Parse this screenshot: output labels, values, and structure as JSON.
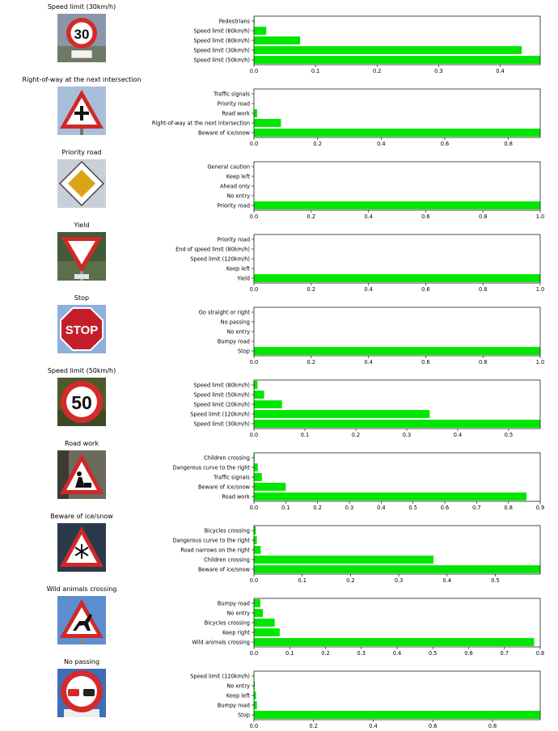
{
  "colors": {
    "bar": "#00e600",
    "axis": "#000000"
  },
  "rows": [
    {
      "title": "Speed limit (30km/h)",
      "sign": "speed-limit-30-sign",
      "chart_data": {
        "type": "bar",
        "orientation": "horizontal",
        "categories": [
          "Pedestrians",
          "Speed limit (60km/h)",
          "Speed limit (80km/h)",
          "Speed limit (30km/h)",
          "Speed limit (50km/h)"
        ],
        "values": [
          0.001,
          0.02,
          0.075,
          0.435,
          0.465
        ],
        "xlim": [
          0,
          0.465
        ],
        "xticks": [
          0.0,
          0.1,
          0.2,
          0.3,
          0.4
        ],
        "xtick_labels": [
          "0.0",
          "0.1",
          "0.2",
          "0.3",
          "0.4"
        ]
      }
    },
    {
      "title": "Right-of-way at the next intersection",
      "sign": "right-of-way-sign",
      "chart_data": {
        "type": "bar",
        "orientation": "horizontal",
        "categories": [
          "Traffic signals",
          "Priority road",
          "Road work",
          "Right-of-way at the next intersection",
          "Beware of ice/snow"
        ],
        "values": [
          0.0,
          0.0,
          0.01,
          0.085,
          0.9
        ],
        "xlim": [
          0,
          0.9
        ],
        "xticks": [
          0.0,
          0.2,
          0.4,
          0.6,
          0.8
        ],
        "xtick_labels": [
          "0.0",
          "0.2",
          "0.4",
          "0.6",
          "0.8"
        ]
      }
    },
    {
      "title": "Priority road",
      "sign": "priority-road-sign",
      "chart_data": {
        "type": "bar",
        "orientation": "horizontal",
        "categories": [
          "General caution",
          "Keep left",
          "Ahead only",
          "No entry",
          "Priority road"
        ],
        "values": [
          0.0,
          0.0,
          0.0,
          0.0,
          1.0
        ],
        "xlim": [
          0,
          1.0
        ],
        "xticks": [
          0.0,
          0.2,
          0.4,
          0.6,
          0.8,
          1.0
        ],
        "xtick_labels": [
          "0.0",
          "0.2",
          "0.4",
          "0.6",
          "0.8",
          "1.0"
        ]
      }
    },
    {
      "title": "Yield",
      "sign": "yield-sign",
      "chart_data": {
        "type": "bar",
        "orientation": "horizontal",
        "categories": [
          "Priority road",
          "End of speed limit (80km/h)",
          "Speed limit (120km/h)",
          "Keep left",
          "Yield"
        ],
        "values": [
          0.0,
          0.0,
          0.0,
          0.0,
          1.0
        ],
        "xlim": [
          0,
          1.0
        ],
        "xticks": [
          0.0,
          0.2,
          0.4,
          0.6,
          0.8,
          1.0
        ],
        "xtick_labels": [
          "0.0",
          "0.2",
          "0.4",
          "0.6",
          "0.8",
          "1.0"
        ]
      }
    },
    {
      "title": "Stop",
      "sign": "stop-sign",
      "chart_data": {
        "type": "bar",
        "orientation": "horizontal",
        "categories": [
          "Go straight or right",
          "No passing",
          "No entry",
          "Bumpy road",
          "Stop"
        ],
        "values": [
          0.0,
          0.0,
          0.0,
          0.0,
          1.0
        ],
        "xlim": [
          0,
          1.0
        ],
        "xticks": [
          0.0,
          0.2,
          0.4,
          0.6,
          0.8,
          1.0
        ],
        "xtick_labels": [
          "0.0",
          "0.2",
          "0.4",
          "0.6",
          "0.8",
          "1.0"
        ]
      }
    },
    {
      "title": "Speed limit (50km/h)",
      "sign": "speed-limit-50-sign",
      "chart_data": {
        "type": "bar",
        "orientation": "horizontal",
        "categories": [
          "Speed limit (80km/h)",
          "Speed limit (50km/h)",
          "Speed limit (20km/h)",
          "Speed limit (120km/h)",
          "Speed limit (30km/h)"
        ],
        "values": [
          0.007,
          0.02,
          0.055,
          0.345,
          0.562
        ],
        "xlim": [
          0,
          0.562
        ],
        "xticks": [
          0.0,
          0.1,
          0.2,
          0.3,
          0.4,
          0.5
        ],
        "xtick_labels": [
          "0.0",
          "0.1",
          "0.2",
          "0.3",
          "0.4",
          "0.5"
        ]
      }
    },
    {
      "title": "Road work",
      "sign": "road-work-sign",
      "chart_data": {
        "type": "bar",
        "orientation": "horizontal",
        "categories": [
          "Children crossing",
          "Dangerous curve to the right",
          "Traffic signals",
          "Beware of ice/snow",
          "Road work"
        ],
        "values": [
          0.002,
          0.012,
          0.025,
          0.1,
          0.857
        ],
        "xlim": [
          0,
          0.9
        ],
        "xticks": [
          0.0,
          0.1,
          0.2,
          0.3,
          0.4,
          0.5,
          0.6,
          0.7,
          0.8,
          0.9
        ],
        "xtick_labels": [
          "0.0",
          "0.1",
          "0.2",
          "0.3",
          "0.4",
          "0.5",
          "0.6",
          "0.7",
          "0.8",
          "0.9"
        ]
      }
    },
    {
      "title": "Beware of ice/snow",
      "sign": "beware-of-ice-snow-sign",
      "chart_data": {
        "type": "bar",
        "orientation": "horizontal",
        "categories": [
          "Bicycles crossing",
          "Dangerous curve to the right",
          "Road narrows on the right",
          "Children crossing",
          "Beware of ice/snow"
        ],
        "values": [
          0.004,
          0.006,
          0.014,
          0.372,
          0.593
        ],
        "xlim": [
          0,
          0.593
        ],
        "xticks": [
          0.0,
          0.1,
          0.2,
          0.3,
          0.4,
          0.5
        ],
        "xtick_labels": [
          "0.0",
          "0.1",
          "0.2",
          "0.3",
          "0.4",
          "0.5"
        ]
      }
    },
    {
      "title": "Wild animals crossing",
      "sign": "wild-animals-crossing-sign",
      "chart_data": {
        "type": "bar",
        "orientation": "horizontal",
        "categories": [
          "Bumpy road",
          "No entry",
          "Bicycles crossing",
          "Keep right",
          "Wild animals crossing"
        ],
        "values": [
          0.018,
          0.025,
          0.058,
          0.072,
          0.783
        ],
        "xlim": [
          0,
          0.8
        ],
        "xticks": [
          0.0,
          0.1,
          0.2,
          0.3,
          0.4,
          0.5,
          0.6,
          0.7,
          0.8
        ],
        "xtick_labels": [
          "0.0",
          "0.1",
          "0.2",
          "0.3",
          "0.4",
          "0.5",
          "0.6",
          "0.7",
          "0.8"
        ]
      }
    },
    {
      "title": "No passing",
      "sign": "no-passing-sign",
      "chart_data": {
        "type": "bar",
        "orientation": "horizontal",
        "categories": [
          "Speed limit (120km/h)",
          "No entry",
          "Keep left",
          "Bumpy road",
          "Stop"
        ],
        "values": [
          0.001,
          0.003,
          0.007,
          0.01,
          0.96
        ],
        "xlim": [
          0,
          0.96
        ],
        "xticks": [
          0.0,
          0.2,
          0.4,
          0.6,
          0.8
        ],
        "xtick_labels": [
          "0.0",
          "0.2",
          "0.4",
          "0.6",
          "0.8"
        ]
      }
    }
  ]
}
